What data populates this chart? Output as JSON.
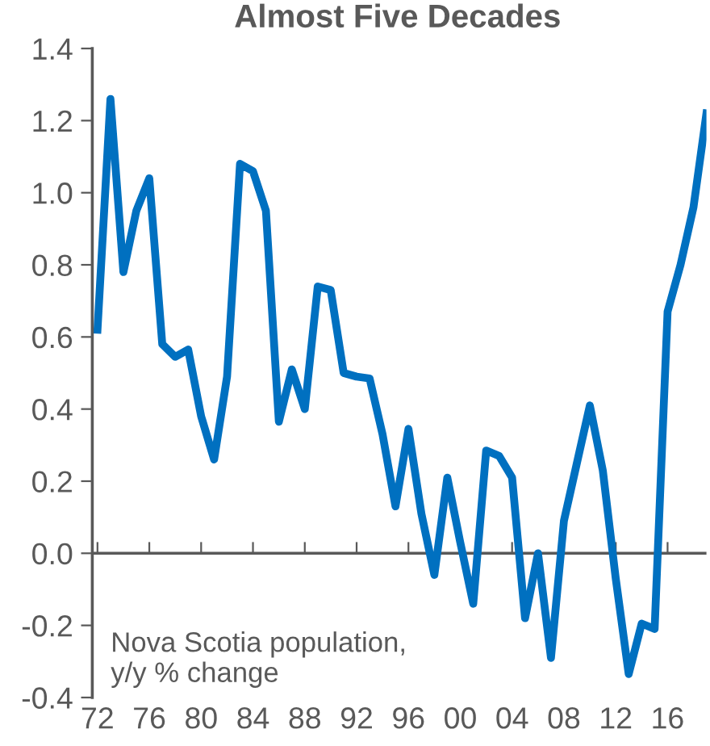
{
  "chart_data": {
    "type": "line",
    "title": "Almost Five Decades",
    "x": [
      1972,
      1973,
      1974,
      1975,
      1976,
      1977,
      1978,
      1979,
      1980,
      1981,
      1982,
      1983,
      1984,
      1985,
      1986,
      1987,
      1988,
      1989,
      1990,
      1991,
      1992,
      1993,
      1994,
      1995,
      1996,
      1997,
      1998,
      1999,
      2000,
      2001,
      2002,
      2003,
      2004,
      2005,
      2006,
      2007,
      2008,
      2009,
      2010,
      2011,
      2012,
      2013,
      2014,
      2015,
      2016,
      2017,
      2018,
      2019
    ],
    "series": [
      {
        "color": "#0070c0",
        "values": [
          0.62,
          1.26,
          0.78,
          0.95,
          1.04,
          0.58,
          0.545,
          0.565,
          0.38,
          0.26,
          0.49,
          1.08,
          1.06,
          0.95,
          0.365,
          0.51,
          0.4,
          0.74,
          0.73,
          0.5,
          0.49,
          0.485,
          0.33,
          0.13,
          0.345,
          0.11,
          -0.06,
          0.21,
          0.03,
          -0.14,
          0.285,
          0.27,
          0.21,
          -0.18,
          0.0,
          -0.29,
          0.09,
          0.25,
          0.41,
          0.23,
          -0.07,
          -0.335,
          -0.195,
          -0.21,
          0.67,
          0.8,
          0.96,
          1.22
        ]
      }
    ],
    "annotations": [
      "Nova Scotia population,\ny/y % change"
    ],
    "xlim": [
      1971.6,
      2019.0
    ],
    "xticks": [
      {
        "value": 1972,
        "label": "72"
      },
      {
        "value": 1976,
        "label": "76"
      },
      {
        "value": 1980,
        "label": "80"
      },
      {
        "value": 1984,
        "label": "84"
      },
      {
        "value": 1988,
        "label": "88"
      },
      {
        "value": 1992,
        "label": "92"
      },
      {
        "value": 1996,
        "label": "96"
      },
      {
        "value": 2000,
        "label": "00"
      },
      {
        "value": 2004,
        "label": "04"
      },
      {
        "value": 2008,
        "label": "08"
      },
      {
        "value": 2012,
        "label": "12"
      },
      {
        "value": 2016,
        "label": "16"
      }
    ],
    "ylim": [
      -0.4,
      1.4
    ],
    "yticks": [
      {
        "value": -0.4,
        "label": "-0.4"
      },
      {
        "value": -0.2,
        "label": "-0.2"
      },
      {
        "value": 0.0,
        "label": "0.0"
      },
      {
        "value": 0.2,
        "label": "0.2"
      },
      {
        "value": 0.4,
        "label": "0.4"
      },
      {
        "value": 0.6,
        "label": "0.6"
      },
      {
        "value": 0.8,
        "label": "0.8"
      },
      {
        "value": 1.0,
        "label": "1.0"
      },
      {
        "value": 1.2,
        "label": "1.2"
      },
      {
        "value": 1.4,
        "label": "1.4"
      }
    ],
    "ref_lines": [
      {
        "axis": "y",
        "value": 0,
        "color": "#595959"
      }
    ],
    "grid": false,
    "legend": false,
    "marker": "none",
    "line_style": "solid"
  }
}
